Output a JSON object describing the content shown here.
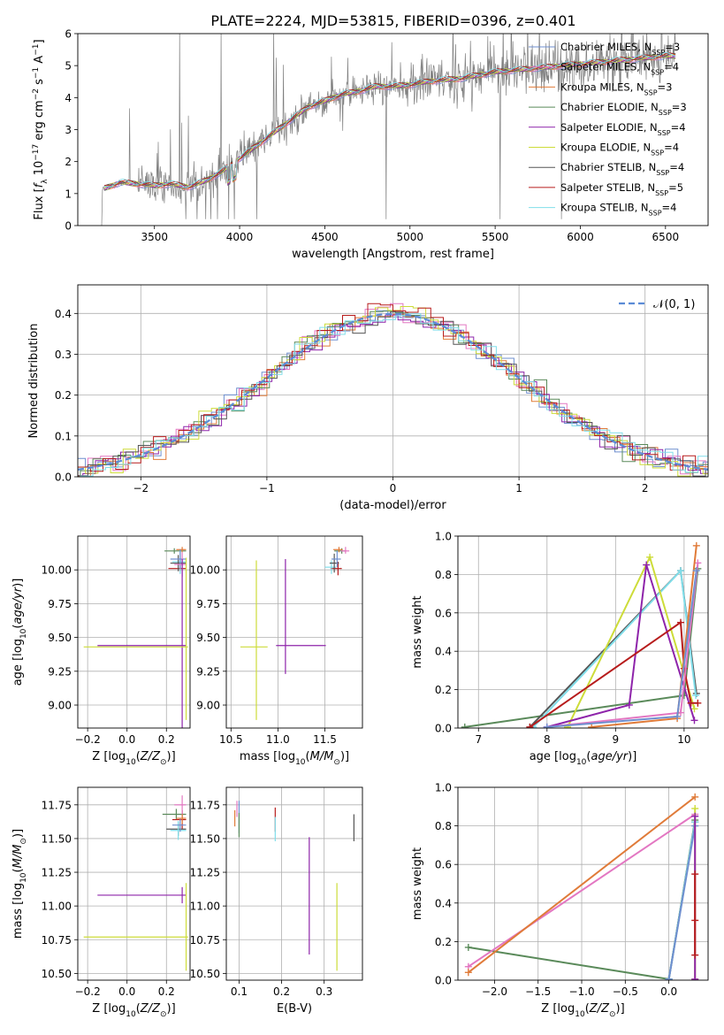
{
  "figure_title": "PLATE=2224, MJD=53815, FIBERID=0396, z=0.401",
  "chart_data": [
    {
      "id": "spectrum",
      "type": "line",
      "title": "PLATE=2224, MJD=53815, FIBERID=0396, z=0.401",
      "xlabel": "wavelength [Angstrom, rest frame]",
      "ylabel": "Flux [f_λ 10^-17 erg cm^-2 s^-1 A^-1]",
      "xlim": [
        3050,
        6750
      ],
      "ylim": [
        0,
        6
      ],
      "xticks": [
        3500,
        4000,
        4500,
        5000,
        5500,
        6000,
        6500
      ],
      "yticks": [
        0,
        1,
        2,
        3,
        4,
        5,
        6
      ],
      "grid": false,
      "legend_position": "top-right",
      "data_series": {
        "name": "data",
        "color": "#808080"
      },
      "model_x": [
        3200,
        3300,
        3400,
        3500,
        3600,
        3700,
        3800,
        3900,
        4000,
        4100,
        4200,
        4300,
        4400,
        4500,
        4600,
        4700,
        4800,
        4900,
        5000,
        5100,
        5200,
        5300,
        5400,
        5500,
        5600,
        5700,
        5800,
        5900,
        6000,
        6100,
        6200,
        6300,
        6400,
        6500,
        6560
      ],
      "model_y": [
        1.15,
        1.35,
        1.3,
        1.25,
        1.3,
        1.2,
        1.4,
        1.7,
        2.1,
        2.5,
        2.9,
        3.3,
        3.7,
        3.9,
        4.1,
        4.2,
        4.35,
        4.35,
        4.4,
        4.5,
        4.55,
        4.6,
        4.7,
        4.8,
        4.85,
        4.9,
        4.95,
        5.0,
        5.05,
        5.1,
        5.15,
        5.2,
        5.25,
        5.3,
        5.3
      ],
      "series": [
        {
          "name": "Chabrier MILES",
          "nssp": "3",
          "color": "#6f8fcf"
        },
        {
          "name": "Salpeter MILES",
          "nssp": "4",
          "color": "#e377c2"
        },
        {
          "name": "Kroupa MILES",
          "nssp": "3",
          "color": "#e07b39"
        },
        {
          "name": "Chabrier ELODIE",
          "nssp": "3",
          "color": "#5a8a5a"
        },
        {
          "name": "Salpeter ELODIE",
          "nssp": "4",
          "color": "#8e24aa"
        },
        {
          "name": "Kroupa ELODIE",
          "nssp": "4",
          "color": "#cddc39"
        },
        {
          "name": "Chabrier STELIB",
          "nssp": "4",
          "color": "#555555"
        },
        {
          "name": "Salpeter STELIB",
          "nssp": "5",
          "color": "#b71c1c"
        },
        {
          "name": "Kroupa STELIB",
          "nssp": "4",
          "color": "#80deea"
        }
      ]
    },
    {
      "id": "residual_hist",
      "type": "line",
      "xlabel": "(data-model)/error",
      "ylabel": "Normed distribution",
      "xlim": [
        -2.5,
        2.5
      ],
      "ylim": [
        0,
        0.47
      ],
      "xticks": [
        -2,
        -1,
        0,
        1,
        2
      ],
      "yticks": [
        0.0,
        0.1,
        0.2,
        0.3,
        0.4
      ],
      "grid": true,
      "legend_position": "top-right",
      "reference": {
        "name": "𝒩(0, 1)",
        "color": "#5b8bd6",
        "style": "dashed"
      }
    },
    {
      "id": "age_vs_Z",
      "type": "scatter",
      "xlabel": "Z [log10(Z/Z☉)]",
      "ylabel": "age [log10(age/yr)]",
      "xlim": [
        -0.25,
        0.32
      ],
      "ylim": [
        8.83,
        10.25
      ],
      "xticks": [
        -0.2,
        0.0,
        0.2
      ],
      "yticks": [
        9.0,
        9.25,
        9.5,
        9.75,
        10.0
      ],
      "grid": true,
      "points": [
        {
          "x": 0.24,
          "y": 10.14,
          "xerr": [
            0.05,
            0.06
          ],
          "yerr": [
            0.02,
            0.02
          ],
          "color": "#5a8a5a"
        },
        {
          "x": 0.27,
          "y": 10.01,
          "xerr": [
            0.06,
            0.03
          ],
          "yerr": [
            0.02,
            0.02
          ],
          "color": "#b71c1c"
        },
        {
          "x": 0.27,
          "y": 10.06,
          "xerr": [
            0.04,
            0.03
          ],
          "yerr": [
            0.09,
            0.09
          ],
          "color": "#80deea"
        },
        {
          "x": 0.28,
          "y": 10.15,
          "xerr": [
            0.03,
            0.02
          ],
          "yerr": [
            0.02,
            0.02
          ],
          "color": "#e07b39"
        },
        {
          "x": 0.26,
          "y": 10.05,
          "xerr": [
            0.04,
            0.04
          ],
          "yerr": [
            0.06,
            0.06
          ],
          "color": "#555555"
        },
        {
          "x": 0.27,
          "y": 10.08,
          "xerr": [
            0.05,
            0.03
          ],
          "yerr": [
            0.07,
            0.07
          ],
          "color": "#6f8fcf"
        },
        {
          "x": 0.28,
          "y": 10.04,
          "xerr": [
            0.04,
            0.02
          ],
          "yerr": [
            0.09,
            0.09
          ],
          "color": "#e377c2"
        },
        {
          "x": 0.28,
          "y": 9.44,
          "xerr": [
            0.43,
            0.02
          ],
          "yerr": [
            0.66,
            0.64
          ],
          "color": "#8e24aa"
        },
        {
          "x": 0.3,
          "y": 9.43,
          "xerr": [
            0.52,
            0.01
          ],
          "yerr": [
            0.54,
            0.66
          ],
          "color": "#cddc39"
        }
      ]
    },
    {
      "id": "age_vs_mass",
      "type": "scatter",
      "xlabel": "mass [log10(M/M☉)]",
      "xlim": [
        10.45,
        11.9
      ],
      "ylim": [
        8.83,
        10.25
      ],
      "xticks": [
        10.5,
        11.0,
        11.5
      ],
      "yticks": [
        9.0,
        9.25,
        9.5,
        9.75,
        10.0
      ],
      "grid": true,
      "points": [
        {
          "x": 11.68,
          "y": 10.14,
          "xerr": [
            0.08,
            0.04
          ],
          "yerr": [
            0.02,
            0.02
          ],
          "color": "#5a8a5a"
        },
        {
          "x": 11.64,
          "y": 10.01,
          "xerr": [
            0.08,
            0.04
          ],
          "yerr": [
            0.05,
            0.05
          ],
          "color": "#b71c1c"
        },
        {
          "x": 11.57,
          "y": 10.02,
          "xerr": [
            0.07,
            0.05
          ],
          "yerr": [
            0.05,
            0.05
          ],
          "color": "#80deea"
        },
        {
          "x": 11.65,
          "y": 10.15,
          "xerr": [
            0.06,
            0.04
          ],
          "yerr": [
            0.02,
            0.02
          ],
          "color": "#e07b39"
        },
        {
          "x": 11.6,
          "y": 10.05,
          "xerr": [
            0.05,
            0.05
          ],
          "yerr": [
            0.07,
            0.07
          ],
          "color": "#555555"
        },
        {
          "x": 11.63,
          "y": 10.08,
          "xerr": [
            0.06,
            0.04
          ],
          "yerr": [
            0.06,
            0.06
          ],
          "color": "#6f8fcf"
        },
        {
          "x": 11.72,
          "y": 10.14,
          "xerr": [
            0.05,
            0.04
          ],
          "yerr": [
            0.02,
            0.03
          ],
          "color": "#e377c2"
        },
        {
          "x": 11.08,
          "y": 9.44,
          "xerr": [
            0.1,
            0.43
          ],
          "yerr": [
            0.21,
            0.64
          ],
          "color": "#8e24aa"
        },
        {
          "x": 10.77,
          "y": 9.43,
          "xerr": [
            0.17,
            0.12
          ],
          "yerr": [
            0.54,
            0.64
          ],
          "color": "#cddc39"
        }
      ]
    },
    {
      "id": "weight_vs_age",
      "type": "line",
      "xlabel": "age [log10(age/yr)]",
      "ylabel": "mass weight",
      "xlim": [
        6.7,
        10.35
      ],
      "ylim": [
        0,
        1.0
      ],
      "xticks": [
        7,
        8,
        9,
        10
      ],
      "yticks": [
        0.0,
        0.2,
        0.4,
        0.6,
        0.8,
        1.0
      ],
      "grid": true,
      "series": [
        {
          "color": "#5a8a5a",
          "x": [
            6.8,
            10.0,
            10.2
          ],
          "y": [
            0.005,
            0.17,
            0.83
          ]
        },
        {
          "color": "#555555",
          "x": [
            7.75,
            9.95,
            10.18
          ],
          "y": [
            0.005,
            0.82,
            0.18
          ]
        },
        {
          "color": "#80deea",
          "x": [
            7.8,
            9.95,
            10.17
          ],
          "y": [
            0.005,
            0.82,
            0.17
          ]
        },
        {
          "color": "#cddc39",
          "x": [
            8.3,
            9.5,
            10.15
          ],
          "y": [
            0.005,
            0.89,
            0.1
          ]
        },
        {
          "color": "#8e24aa",
          "x": [
            8.0,
            9.2,
            9.45,
            10.15
          ],
          "y": [
            0.005,
            0.12,
            0.85,
            0.04
          ]
        },
        {
          "color": "#b71c1c",
          "x": [
            7.75,
            9.95,
            10.0,
            10.1,
            10.2
          ],
          "y": [
            0.005,
            0.55,
            0.31,
            0.13,
            0.13
          ]
        },
        {
          "color": "#e377c2",
          "x": [
            8.0,
            9.95,
            10.2
          ],
          "y": [
            0.005,
            0.08,
            0.86
          ]
        },
        {
          "color": "#e07b39",
          "x": [
            8.65,
            9.9,
            10.18
          ],
          "y": [
            0.005,
            0.05,
            0.95
          ]
        },
        {
          "color": "#6f8fcf",
          "x": [
            8.0,
            9.9,
            10.18
          ],
          "y": [
            0.005,
            0.06,
            0.82
          ]
        }
      ]
    },
    {
      "id": "mass_vs_Z",
      "type": "scatter",
      "xlabel": "Z [log10(Z/Z☉)]",
      "ylabel": "mass [log10(M/M☉)]",
      "xlim": [
        -0.25,
        0.32
      ],
      "ylim": [
        10.45,
        11.88
      ],
      "xticks": [
        -0.2,
        0.0,
        0.2
      ],
      "yticks": [
        10.5,
        10.75,
        11.0,
        11.25,
        11.5,
        11.75
      ],
      "grid": true,
      "points": [
        {
          "x": 0.25,
          "y": 11.68,
          "xerr": [
            0.07,
            0.05
          ],
          "yerr": [
            0.04,
            0.04
          ],
          "color": "#5a8a5a"
        },
        {
          "x": 0.28,
          "y": 11.64,
          "xerr": [
            0.05,
            0.02
          ],
          "yerr": [
            0.07,
            0.07
          ],
          "color": "#b71c1c"
        },
        {
          "x": 0.26,
          "y": 11.57,
          "xerr": [
            0.06,
            0.04
          ],
          "yerr": [
            0.05,
            0.05
          ],
          "color": "#555555"
        },
        {
          "x": 0.26,
          "y": 11.56,
          "xerr": [
            0.04,
            0.04
          ],
          "yerr": [
            0.07,
            0.07
          ],
          "color": "#80deea"
        },
        {
          "x": 0.27,
          "y": 11.6,
          "xerr": [
            0.04,
            0.03
          ],
          "yerr": [
            0.05,
            0.05
          ],
          "color": "#6f8fcf"
        },
        {
          "x": 0.28,
          "y": 11.65,
          "xerr": [
            0.03,
            0.02
          ],
          "yerr": [
            0.04,
            0.04
          ],
          "color": "#e07b39"
        },
        {
          "x": 0.28,
          "y": 11.75,
          "xerr": [
            0.04,
            0.02
          ],
          "yerr": [
            0.07,
            0.07
          ],
          "color": "#e377c2"
        },
        {
          "x": 0.28,
          "y": 11.08,
          "xerr": [
            0.43,
            0.02
          ],
          "yerr": [
            0.06,
            0.06
          ],
          "color": "#8e24aa"
        },
        {
          "x": 0.3,
          "y": 10.77,
          "xerr": [
            0.52,
            0.01
          ],
          "yerr": [
            0.25,
            0.4
          ],
          "color": "#cddc39"
        }
      ]
    },
    {
      "id": "mass_vs_ebv",
      "type": "scatter",
      "xlabel": "E(B-V)",
      "xlim": [
        0.07,
        0.39
      ],
      "ylim": [
        10.45,
        11.88
      ],
      "xticks": [
        0.1,
        0.2,
        0.3
      ],
      "yticks": [
        10.5,
        10.75,
        11.0,
        11.25,
        11.5,
        11.75
      ],
      "grid": true,
      "points": [
        {
          "x": 0.095,
          "y": 11.72,
          "xerr": [
            0,
            0
          ],
          "yerr": [
            0.06,
            0.06
          ],
          "color": "#e377c2"
        },
        {
          "x": 0.09,
          "y": 11.65,
          "xerr": [
            0,
            0
          ],
          "yerr": [
            0.06,
            0.06
          ],
          "color": "#e07b39"
        },
        {
          "x": 0.1,
          "y": 11.66,
          "xerr": [
            0,
            0
          ],
          "yerr": [
            0.12,
            0.12
          ],
          "color": "#6f8fcf"
        },
        {
          "x": 0.1,
          "y": 11.6,
          "xerr": [
            0,
            0
          ],
          "yerr": [
            0.09,
            0.09
          ],
          "color": "#5a8a5a"
        },
        {
          "x": 0.185,
          "y": 11.64,
          "xerr": [
            0,
            0
          ],
          "yerr": [
            0.09,
            0.09
          ],
          "color": "#b71c1c"
        },
        {
          "x": 0.185,
          "y": 11.57,
          "xerr": [
            0,
            0
          ],
          "yerr": [
            0.09,
            0.09
          ],
          "color": "#80deea"
        },
        {
          "x": 0.265,
          "y": 11.07,
          "xerr": [
            0,
            0
          ],
          "yerr": [
            0.43,
            0.44
          ],
          "color": "#8e24aa"
        },
        {
          "x": 0.33,
          "y": 10.77,
          "xerr": [
            0,
            0
          ],
          "yerr": [
            0.25,
            0.4
          ],
          "color": "#cddc39"
        },
        {
          "x": 0.37,
          "y": 11.58,
          "xerr": [
            0,
            0
          ],
          "yerr": [
            0.1,
            0.1
          ],
          "color": "#555555"
        }
      ]
    },
    {
      "id": "weight_vs_Z",
      "type": "line",
      "xlabel": "Z [log10(Z/Z☉)]",
      "ylabel": "mass weight",
      "xlim": [
        -2.42,
        0.45
      ],
      "ylim": [
        0,
        1.0
      ],
      "xticks": [
        -2.0,
        -1.5,
        -1.0,
        -0.5,
        0.0
      ],
      "yticks": [
        0.0,
        0.2,
        0.4,
        0.6,
        0.8,
        1.0
      ],
      "grid": true,
      "series": [
        {
          "color": "#5a8a5a",
          "x": [
            -2.3,
            0.0,
            0.3
          ],
          "y": [
            0.17,
            0.005,
            0.83
          ]
        },
        {
          "color": "#e377c2",
          "x": [
            -2.3,
            0.3
          ],
          "y": [
            0.07,
            0.86
          ]
        },
        {
          "color": "#e07b39",
          "x": [
            -2.3,
            0.3
          ],
          "y": [
            0.04,
            0.95
          ]
        },
        {
          "color": "#555555",
          "x": [
            0.0,
            0.3
          ],
          "y": [
            0.005,
            0.82
          ]
        },
        {
          "color": "#80deea",
          "x": [
            0.0,
            0.3
          ],
          "y": [
            0.005,
            0.82
          ]
        },
        {
          "color": "#6f8fcf",
          "x": [
            0.0,
            0.3
          ],
          "y": [
            0.005,
            0.8
          ]
        },
        {
          "color": "#cddc39",
          "x": [
            0.3,
            0.3
          ],
          "y": [
            0.005,
            0.89
          ]
        },
        {
          "color": "#8e24aa",
          "x": [
            0.3,
            0.3
          ],
          "y": [
            0.005,
            0.85
          ]
        },
        {
          "color": "#b71c1c",
          "x": [
            0.3,
            0.3,
            0.3
          ],
          "y": [
            0.13,
            0.31,
            0.55
          ]
        }
      ]
    }
  ]
}
